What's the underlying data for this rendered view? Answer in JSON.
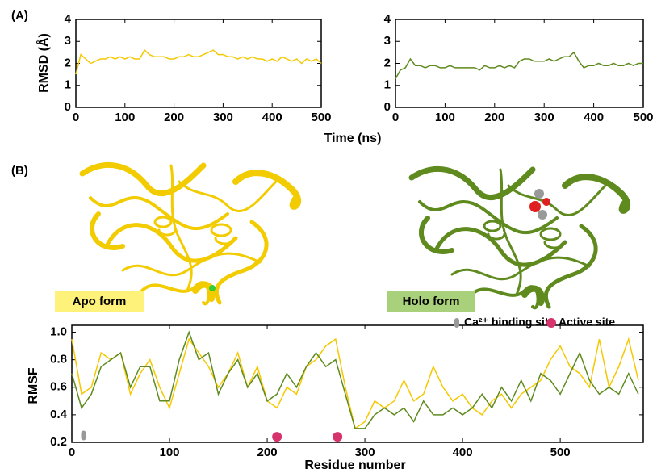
{
  "panels": {
    "a": "(A)",
    "b": "(B)"
  },
  "structures": [
    {
      "label": "Apo form"
    },
    {
      "label": "Holo form"
    }
  ],
  "chart_data": [
    {
      "type": "line",
      "xlabel": "Time (ns)",
      "ylabel": "RMSD (Å)",
      "xlim": [
        0,
        500
      ],
      "xticks": [
        0,
        100,
        200,
        300,
        400,
        500
      ],
      "ylim": [
        0,
        4
      ],
      "yticks": [
        0,
        1,
        2,
        3,
        4
      ],
      "x": [
        0,
        10,
        20,
        30,
        40,
        50,
        60,
        70,
        80,
        90,
        100,
        110,
        120,
        130,
        140,
        150,
        160,
        170,
        180,
        190,
        200,
        210,
        220,
        230,
        240,
        250,
        260,
        270,
        280,
        290,
        300,
        310,
        320,
        330,
        340,
        350,
        360,
        370,
        380,
        390,
        400,
        410,
        420,
        430,
        440,
        450,
        460,
        470,
        480,
        490,
        500
      ],
      "series": [
        {
          "color": "#f5c800",
          "values": [
            1.5,
            2.4,
            2.2,
            2.0,
            2.1,
            2.2,
            2.2,
            2.3,
            2.2,
            2.3,
            2.2,
            2.3,
            2.2,
            2.2,
            2.6,
            2.4,
            2.3,
            2.3,
            2.3,
            2.2,
            2.2,
            2.3,
            2.3,
            2.4,
            2.3,
            2.3,
            2.4,
            2.5,
            2.6,
            2.4,
            2.4,
            2.3,
            2.3,
            2.2,
            2.3,
            2.2,
            2.3,
            2.2,
            2.2,
            2.1,
            2.2,
            2.1,
            2.3,
            2.2,
            2.1,
            2.2,
            2.0,
            2.2,
            2.1,
            2.2,
            2.0
          ]
        }
      ]
    },
    {
      "type": "line",
      "xlim": [
        0,
        500
      ],
      "xticks": [
        0,
        100,
        200,
        300,
        400,
        500
      ],
      "ylim": [
        0,
        4
      ],
      "yticks": [
        0,
        1,
        2,
        3,
        4
      ],
      "x": [
        0,
        10,
        20,
        30,
        40,
        50,
        60,
        70,
        80,
        90,
        100,
        110,
        120,
        130,
        140,
        150,
        160,
        170,
        180,
        190,
        200,
        210,
        220,
        230,
        240,
        250,
        260,
        270,
        280,
        290,
        300,
        310,
        320,
        330,
        340,
        350,
        360,
        370,
        380,
        390,
        400,
        410,
        420,
        430,
        440,
        450,
        460,
        470,
        480,
        490,
        500
      ],
      "series": [
        {
          "color": "#5e8a1e",
          "values": [
            1.3,
            1.7,
            1.8,
            2.2,
            1.9,
            1.9,
            1.8,
            1.9,
            1.9,
            1.8,
            1.8,
            1.9,
            1.8,
            1.8,
            1.8,
            1.8,
            1.8,
            1.7,
            1.9,
            1.8,
            1.8,
            1.9,
            1.8,
            1.9,
            1.8,
            2.1,
            2.2,
            2.2,
            2.1,
            2.1,
            2.1,
            2.2,
            2.1,
            2.2,
            2.3,
            2.3,
            2.5,
            2.1,
            1.8,
            1.9,
            1.9,
            2.0,
            1.9,
            1.9,
            2.0,
            1.9,
            1.9,
            2.0,
            1.9,
            2.0,
            2.0
          ]
        }
      ]
    },
    {
      "type": "line",
      "xlabel": "Residue number",
      "ylabel": "RMSF",
      "xlim": [
        0,
        585
      ],
      "xticks": [
        0,
        100,
        200,
        300,
        400,
        500
      ],
      "ylim": [
        0.2,
        1.05
      ],
      "yticks": [
        0.2,
        0.4,
        0.6,
        0.8,
        {
          "value": 1,
          "label": "1.0"
        }
      ],
      "x": [
        0,
        10,
        20,
        30,
        40,
        50,
        60,
        70,
        80,
        90,
        100,
        110,
        120,
        130,
        140,
        150,
        160,
        170,
        180,
        190,
        200,
        210,
        220,
        230,
        240,
        250,
        260,
        270,
        280,
        290,
        300,
        310,
        320,
        330,
        340,
        350,
        360,
        370,
        380,
        390,
        400,
        410,
        420,
        430,
        440,
        450,
        460,
        470,
        480,
        490,
        500,
        510,
        520,
        530,
        540,
        550,
        560,
        570,
        580
      ],
      "series": [
        {
          "color": "#f5c800",
          "values": [
            0.95,
            0.55,
            0.6,
            0.85,
            0.8,
            0.85,
            0.55,
            0.7,
            0.8,
            0.6,
            0.45,
            0.7,
            0.95,
            0.85,
            0.75,
            0.6,
            0.7,
            0.85,
            0.6,
            0.75,
            0.5,
            0.45,
            0.6,
            0.55,
            0.75,
            0.8,
            0.9,
            0.95,
            0.6,
            0.3,
            0.35,
            0.5,
            0.45,
            0.5,
            0.65,
            0.5,
            0.55,
            0.75,
            0.6,
            0.5,
            0.55,
            0.45,
            0.4,
            0.5,
            0.55,
            0.45,
            0.55,
            0.6,
            0.65,
            0.8,
            0.9,
            0.75,
            0.7,
            0.6,
            0.95,
            0.6,
            0.75,
            0.95,
            0.65
          ]
        },
        {
          "color": "#5e8a1e",
          "values": [
            0.7,
            0.45,
            0.55,
            0.75,
            0.8,
            0.85,
            0.6,
            0.75,
            0.75,
            0.5,
            0.5,
            0.8,
            1.0,
            0.8,
            0.85,
            0.55,
            0.7,
            0.8,
            0.6,
            0.7,
            0.5,
            0.55,
            0.7,
            0.6,
            0.75,
            0.85,
            0.75,
            0.8,
            0.55,
            0.3,
            0.3,
            0.4,
            0.45,
            0.4,
            0.45,
            0.35,
            0.5,
            0.4,
            0.4,
            0.45,
            0.4,
            0.45,
            0.55,
            0.45,
            0.6,
            0.5,
            0.65,
            0.5,
            0.7,
            0.65,
            0.55,
            0.7,
            0.85,
            0.65,
            0.55,
            0.6,
            0.55,
            0.7,
            0.55
          ]
        }
      ],
      "markers": [
        {
          "name": "Ca²⁺ binding site",
          "color": "#999999",
          "shape": "pill",
          "x": [
            12
          ],
          "values": [
            0.25
          ]
        },
        {
          "name": "Active site",
          "color": "#d6336c",
          "shape": "circle",
          "x": [
            210,
            272
          ],
          "values": [
            0.24,
            0.24
          ]
        }
      ]
    }
  ]
}
